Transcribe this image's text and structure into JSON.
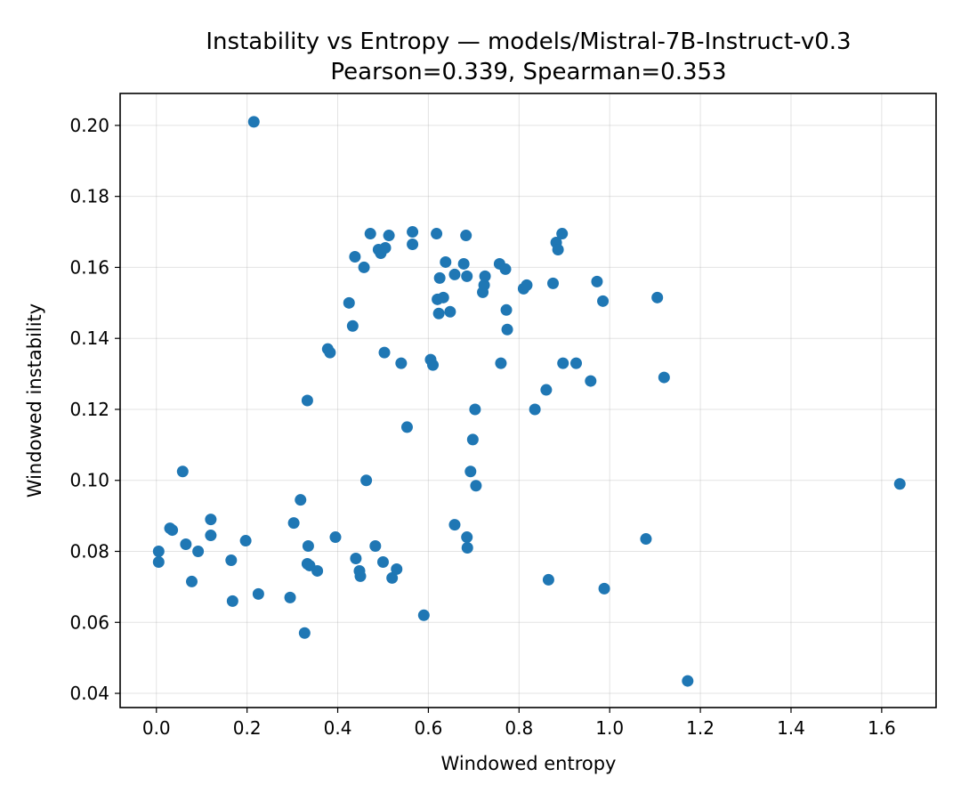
{
  "chart_data": {
    "type": "scatter",
    "title": "Instability vs Entropy — models/Mistral-7B-Instruct-v0.3",
    "subtitle": "Pearson=0.339, Spearman=0.353",
    "xlabel": "Windowed entropy",
    "ylabel": "Windowed instability",
    "xlim": [
      -0.08,
      1.72
    ],
    "ylim": [
      0.036,
      0.209
    ],
    "x_ticks": [
      "0.0",
      "0.2",
      "0.4",
      "0.6",
      "0.8",
      "1.0",
      "1.2",
      "1.4",
      "1.6"
    ],
    "y_ticks": [
      "0.04",
      "0.06",
      "0.08",
      "0.10",
      "0.12",
      "0.14",
      "0.16",
      "0.18",
      "0.20"
    ],
    "grid": true,
    "marker_color": "#1f77b4",
    "points": [
      [
        0.215,
        0.201
      ],
      [
        0.005,
        0.08
      ],
      [
        0.005,
        0.077
      ],
      [
        0.03,
        0.0865
      ],
      [
        0.035,
        0.086
      ],
      [
        0.058,
        0.1025
      ],
      [
        0.065,
        0.082
      ],
      [
        0.078,
        0.0715
      ],
      [
        0.092,
        0.08
      ],
      [
        0.12,
        0.089
      ],
      [
        0.12,
        0.0845
      ],
      [
        0.165,
        0.0775
      ],
      [
        0.168,
        0.066
      ],
      [
        0.197,
        0.083
      ],
      [
        0.225,
        0.068
      ],
      [
        0.295,
        0.067
      ],
      [
        0.303,
        0.088
      ],
      [
        0.318,
        0.0945
      ],
      [
        0.327,
        0.057
      ],
      [
        0.333,
        0.0765
      ],
      [
        0.335,
        0.0815
      ],
      [
        0.338,
        0.076
      ],
      [
        0.355,
        0.0745
      ],
      [
        0.395,
        0.084
      ],
      [
        0.333,
        0.1225
      ],
      [
        0.378,
        0.137
      ],
      [
        0.383,
        0.136
      ],
      [
        0.425,
        0.15
      ],
      [
        0.433,
        0.1435
      ],
      [
        0.438,
        0.163
      ],
      [
        0.44,
        0.078
      ],
      [
        0.448,
        0.0745
      ],
      [
        0.45,
        0.073
      ],
      [
        0.458,
        0.16
      ],
      [
        0.463,
        0.1
      ],
      [
        0.472,
        0.1695
      ],
      [
        0.483,
        0.0815
      ],
      [
        0.49,
        0.165
      ],
      [
        0.495,
        0.164
      ],
      [
        0.5,
        0.077
      ],
      [
        0.503,
        0.136
      ],
      [
        0.505,
        0.1655
      ],
      [
        0.513,
        0.169
      ],
      [
        0.52,
        0.0725
      ],
      [
        0.53,
        0.075
      ],
      [
        0.54,
        0.133
      ],
      [
        0.553,
        0.115
      ],
      [
        0.565,
        0.1665
      ],
      [
        0.565,
        0.17
      ],
      [
        0.59,
        0.062
      ],
      [
        0.605,
        0.134
      ],
      [
        0.61,
        0.1325
      ],
      [
        0.618,
        0.1695
      ],
      [
        0.62,
        0.151
      ],
      [
        0.623,
        0.147
      ],
      [
        0.625,
        0.157
      ],
      [
        0.633,
        0.1515
      ],
      [
        0.638,
        0.1615
      ],
      [
        0.648,
        0.1475
      ],
      [
        0.658,
        0.158
      ],
      [
        0.658,
        0.0875
      ],
      [
        0.678,
        0.161
      ],
      [
        0.683,
        0.169
      ],
      [
        0.685,
        0.1575
      ],
      [
        0.685,
        0.084
      ],
      [
        0.686,
        0.081
      ],
      [
        0.693,
        0.1025
      ],
      [
        0.698,
        0.1115
      ],
      [
        0.703,
        0.12
      ],
      [
        0.705,
        0.0985
      ],
      [
        0.72,
        0.153
      ],
      [
        0.723,
        0.155
      ],
      [
        0.725,
        0.1575
      ],
      [
        0.757,
        0.161
      ],
      [
        0.76,
        0.133
      ],
      [
        0.77,
        0.1595
      ],
      [
        0.772,
        0.148
      ],
      [
        0.774,
        0.1425
      ],
      [
        0.81,
        0.154
      ],
      [
        0.817,
        0.155
      ],
      [
        0.835,
        0.12
      ],
      [
        0.86,
        0.1255
      ],
      [
        0.865,
        0.072
      ],
      [
        0.875,
        0.1555
      ],
      [
        0.882,
        0.167
      ],
      [
        0.886,
        0.165
      ],
      [
        0.895,
        0.1695
      ],
      [
        0.897,
        0.133
      ],
      [
        0.926,
        0.133
      ],
      [
        0.958,
        0.128
      ],
      [
        0.972,
        0.156
      ],
      [
        0.985,
        0.1505
      ],
      [
        0.988,
        0.0695
      ],
      [
        1.08,
        0.0835
      ],
      [
        1.105,
        0.1515
      ],
      [
        1.12,
        0.129
      ],
      [
        1.172,
        0.0435
      ],
      [
        1.64,
        0.099
      ]
    ]
  }
}
